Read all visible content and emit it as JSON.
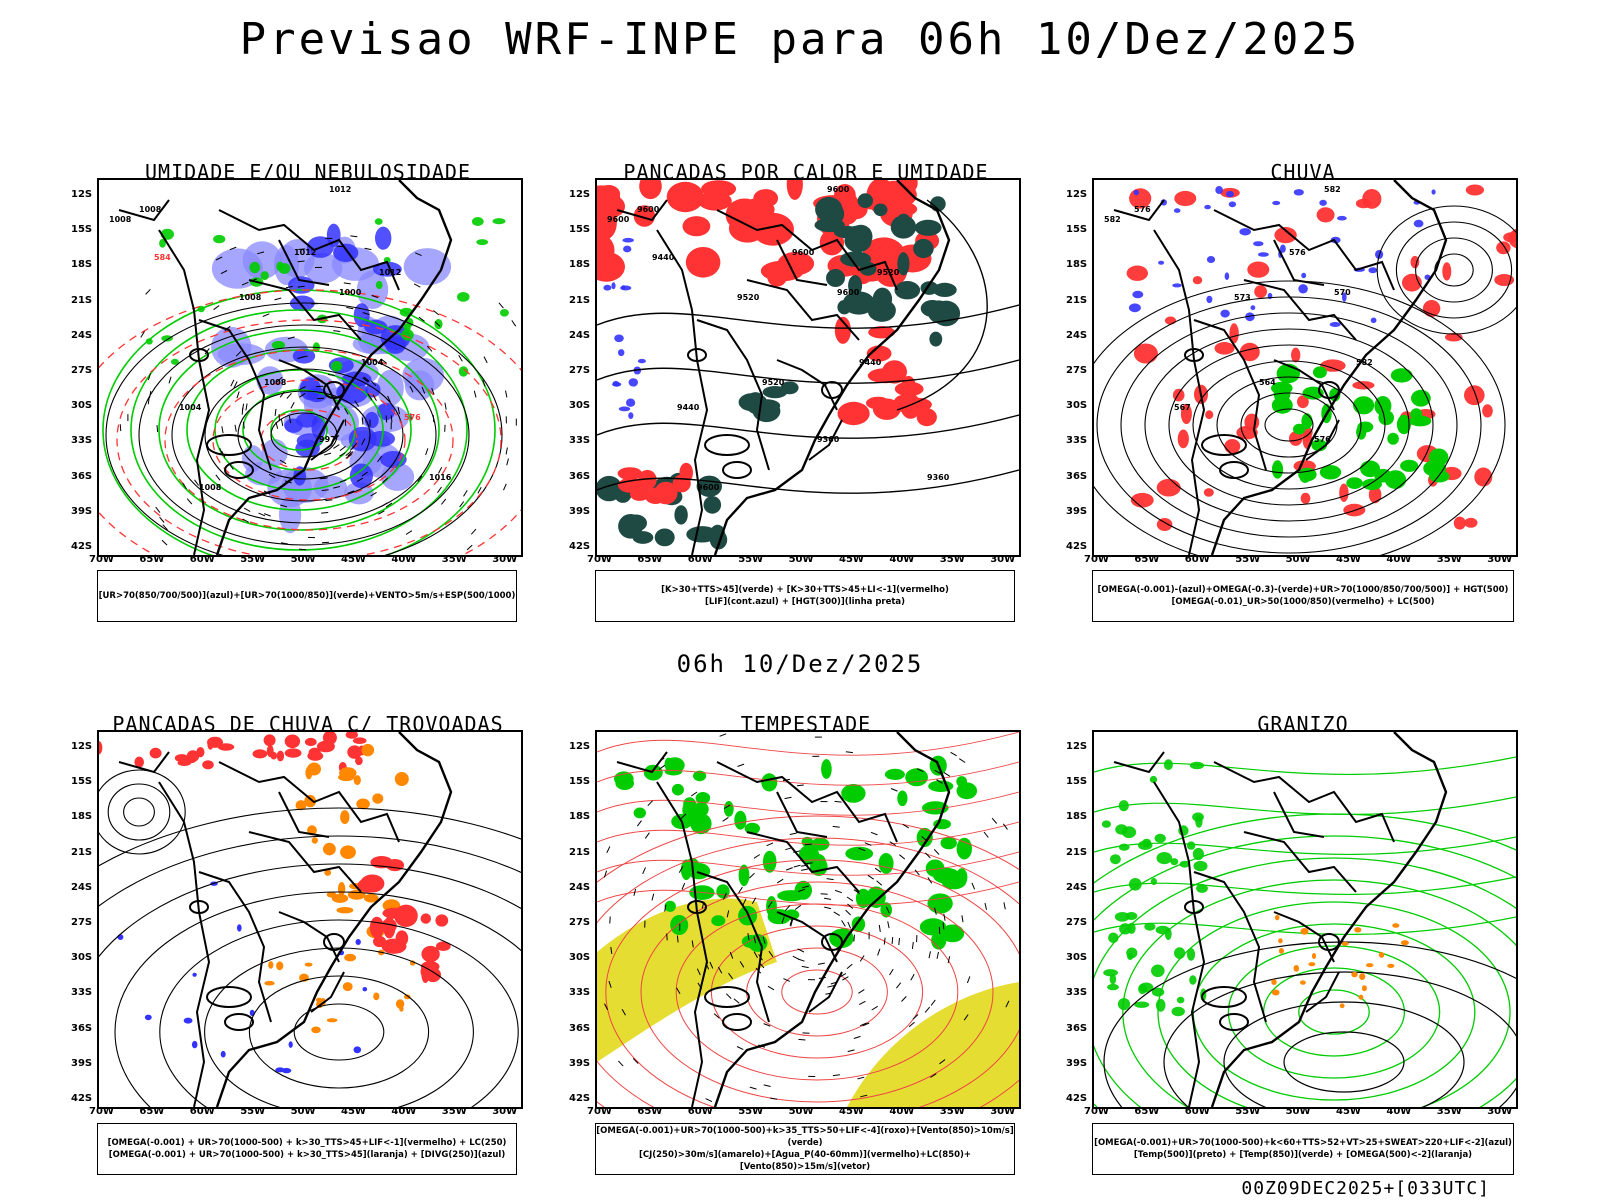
{
  "title": "Previsao WRF-INPE  para 06h 10/Dez/2025",
  "mid_title": "06h 10/Dez/2025",
  "footer": "00Z09DEC2025+[033UTC]",
  "lat_labels": [
    "12S",
    "15S",
    "18S",
    "21S",
    "24S",
    "27S",
    "30S",
    "33S",
    "36S",
    "39S",
    "42S"
  ],
  "lon_labels": [
    "70W",
    "65W",
    "60W",
    "55W",
    "50W",
    "45W",
    "40W",
    "35W",
    "30W"
  ],
  "colors": {
    "blue": "#3333ff",
    "lightblue": "#8888ff",
    "green": "#00cc00",
    "red": "#ff3333",
    "orange": "#ff8800",
    "yellow": "#e6dd33",
    "darkgreen": "#1f4a44"
  },
  "panels": [
    {
      "title": "UMIDADE E/OU NEBULOSIDADE",
      "legend": [
        "[UR>70(850/700/500)](azul)+[UR>70(1000/850)](verde)+VENTO>5m/s+ESP(500/1000)"
      ],
      "labels": [
        "1012",
        "1008",
        "1008",
        "1012",
        "1008",
        "1000",
        "1008",
        "1004",
        "997",
        "1004",
        "1016",
        "1008",
        "1012",
        "584",
        "576"
      ]
    },
    {
      "title": "PANCADAS POR CALOR E UMIDADE",
      "legend": [
        "[K>30+TTS>45](verde) + [K>30+TTS>45+LI<-1](vermelho)",
        "[LIF](cont.azul) + [HGT(300)](linha preta)"
      ],
      "labels": [
        "9600",
        "9600",
        "9600",
        "9600",
        "9520",
        "9600",
        "9520",
        "9440",
        "9360",
        "9440",
        "9360",
        "9600",
        "9520",
        "9440"
      ]
    },
    {
      "title": "CHUVA",
      "legend": [
        "[OMEGA(-0.001)-(azul)+OMEGA(-0.3)-(verde)+UR>70(1000/850/700/500)] + HGT(500)",
        "[OMEGA(-0.01)_UR>50(1000/850)(vermelho) + LC(500)"
      ],
      "labels": [
        "582",
        "582",
        "576",
        "576",
        "573",
        "570",
        "564",
        "567",
        "576",
        "582"
      ]
    },
    {
      "title": "PANCADAS DE CHUVA C/ TROVOADAS",
      "legend": [
        "[OMEGA(-0.001) + UR>70(1000-500) + k>30_TTS>45+LIF<-1](vermelho) + LC(250)",
        "[OMEGA(-0.001) + UR>70(1000-500) + k>30_TTS>45](laranja) + [DIVG(250)](azul)"
      ],
      "labels": []
    },
    {
      "title": "TEMPESTADE",
      "legend": [
        "[OMEGA(-0.001)+UR>70(1000-500)+k>35_TTS>50+LIF<-4](roxo)+[Vento(850)>10m/s](verde)",
        "[CJ(250)>30m/s](amarelo)+[Agua_P(40-60mm)](vermelho)+LC(850)+[Vento(850)>15m/s](vetor)"
      ],
      "labels": []
    },
    {
      "title": "GRANIZO",
      "legend": [
        "[OMEGA(-0.001)+UR>70(1000-500)+k<60+TTS>52+VT>25+SWEAT>220+LIF<-2](azul)",
        "[Temp(500)](preto) + [Temp(850)](verde) + [OMEGA(500)<-2](laranja)"
      ],
      "labels": []
    }
  ]
}
